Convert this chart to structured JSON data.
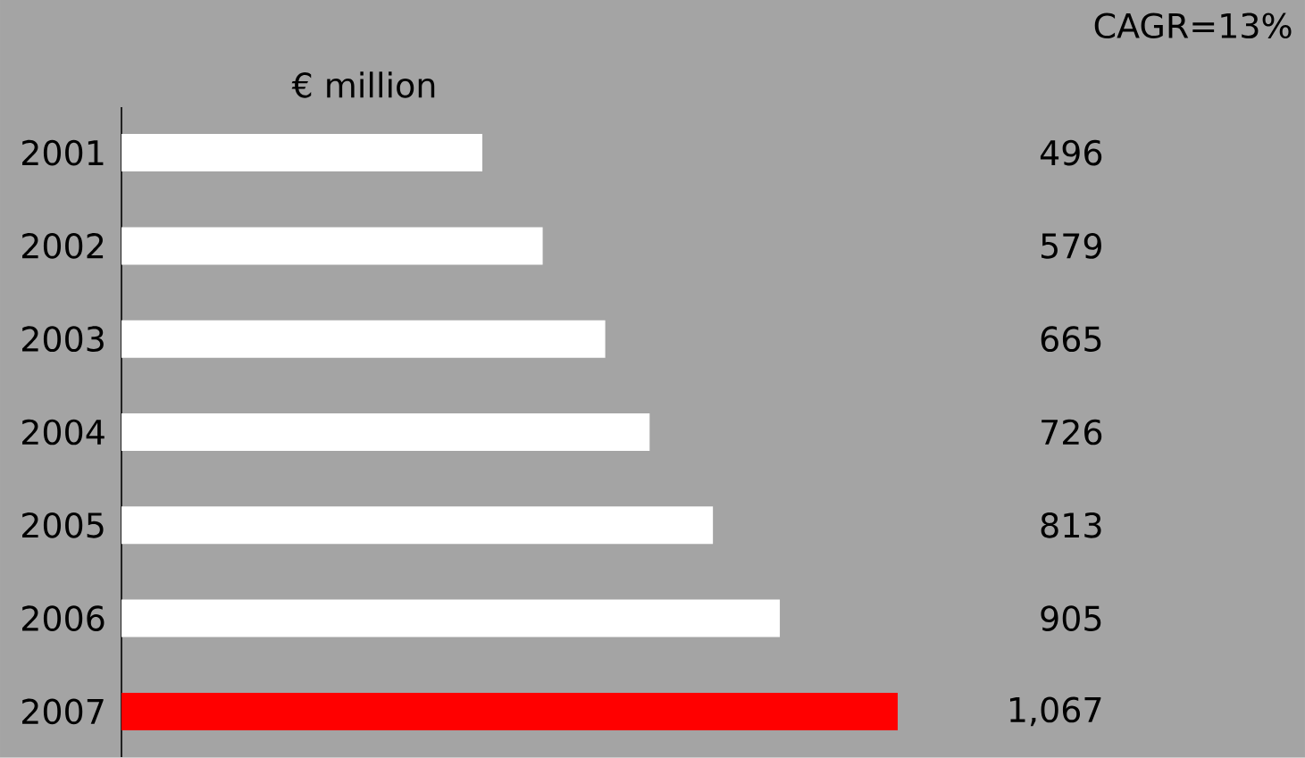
{
  "chart_data": {
    "type": "bar",
    "orientation": "horizontal",
    "xlabel": "€ million",
    "categories": [
      "2001",
      "2002",
      "2003",
      "2004",
      "2005",
      "2006",
      "2007"
    ],
    "values": [
      496,
      579,
      665,
      726,
      813,
      905,
      1067
    ],
    "value_labels": [
      "496",
      "579",
      "665",
      "726",
      "813",
      "905",
      "1,067"
    ],
    "colors": [
      "#ffffff",
      "#ffffff",
      "#ffffff",
      "#ffffff",
      "#ffffff",
      "#ffffff",
      "#ff0000"
    ],
    "annotations": [
      "CAGR=13%"
    ]
  }
}
